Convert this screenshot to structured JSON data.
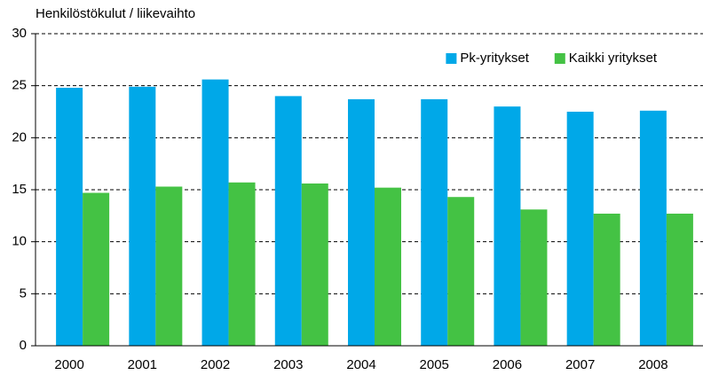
{
  "chart_data": {
    "type": "bar",
    "title": "Henkilöstökulut / liikevaihto",
    "categories": [
      "2000",
      "2001",
      "2002",
      "2003",
      "2004",
      "2005",
      "2006",
      "2007",
      "2008"
    ],
    "series": [
      {
        "name": "Pk-yritykset",
        "color": "#00a8e8",
        "values": [
          24.8,
          24.9,
          25.6,
          24.0,
          23.7,
          23.7,
          23.0,
          22.5,
          22.6
        ]
      },
      {
        "name": "Kaikki yritykset",
        "color": "#44c244",
        "values": [
          14.7,
          15.3,
          15.7,
          15.6,
          15.2,
          14.3,
          13.1,
          12.7,
          12.7
        ]
      }
    ],
    "ylim": [
      0,
      30
    ],
    "yticks": [
      0,
      5,
      10,
      15,
      20,
      25,
      30
    ],
    "grid": true,
    "legend": "upper right"
  }
}
